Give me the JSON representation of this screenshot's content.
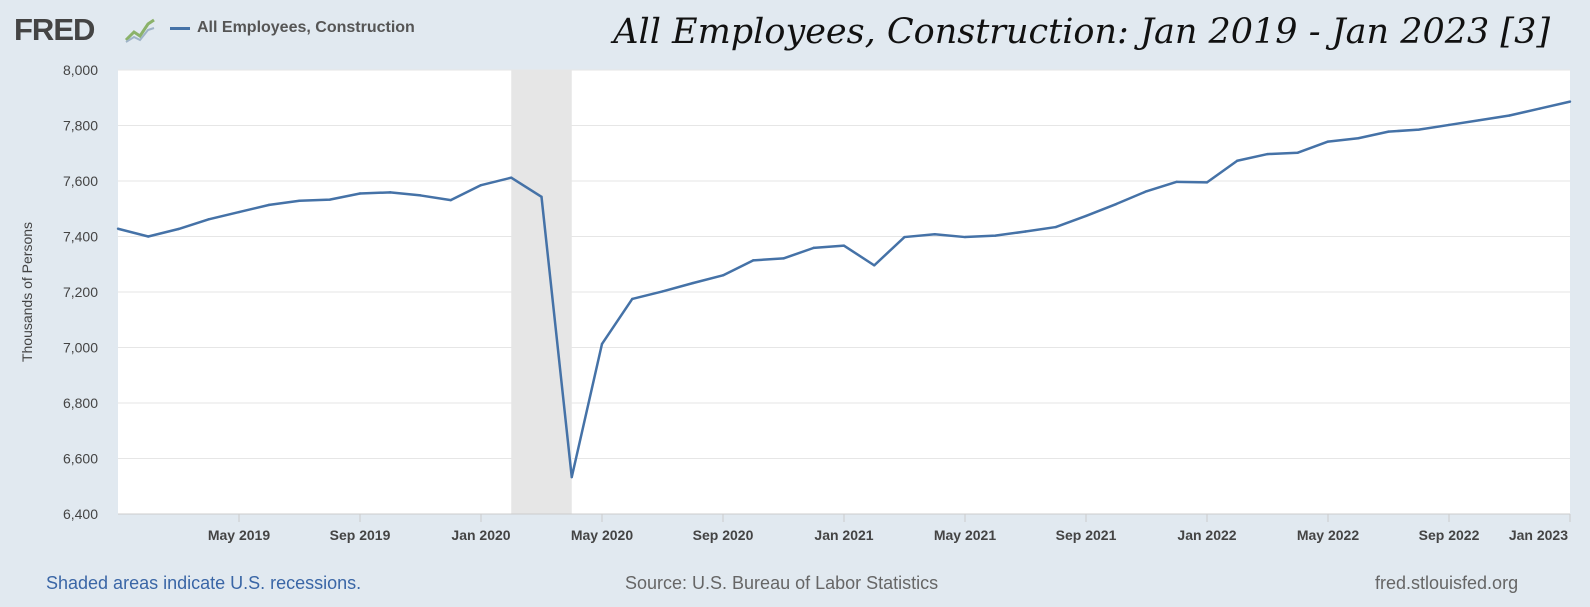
{
  "header": {
    "logo_text": "FRED",
    "legend_label": "All Employees, Construction",
    "title": "All Employees, Construction: Jan 2019 - Jan 2023 [3]"
  },
  "footer": {
    "recession_note": "Shaded areas indicate U.S. recessions.",
    "source": "Source: U.S. Bureau of Labor Statistics",
    "site": "fred.stlouisfed.org"
  },
  "colors": {
    "series": "#4572a7",
    "background": "#e1e9f0",
    "recession": "#e6e6e6"
  },
  "chart_data": {
    "type": "line",
    "title": "",
    "xlabel": "",
    "ylabel": "Thousands of Persons",
    "ylim": [
      6400,
      8000
    ],
    "yticks": [
      6400,
      6600,
      6800,
      7000,
      7200,
      7400,
      7600,
      7800,
      8000
    ],
    "ytick_labels": [
      "6,400",
      "6,600",
      "6,800",
      "7,000",
      "7,200",
      "7,400",
      "7,600",
      "7,800",
      "8,000"
    ],
    "xlim": [
      "2019-01",
      "2023-01"
    ],
    "xticks": [
      "2019-05",
      "2019-09",
      "2020-01",
      "2020-05",
      "2020-09",
      "2021-01",
      "2021-05",
      "2021-09",
      "2022-01",
      "2022-05",
      "2022-09",
      "2023-01"
    ],
    "xtick_labels": [
      "May 2019",
      "Sep 2019",
      "Jan 2020",
      "May 2020",
      "Sep 2020",
      "Jan 2021",
      "May 2021",
      "Sep 2021",
      "Jan 2022",
      "May 2022",
      "Sep 2022",
      "Jan 2023"
    ],
    "recessions": [
      {
        "start": "2020-02",
        "end": "2020-04"
      }
    ],
    "grid": true,
    "series": [
      {
        "name": "All Employees, Construction",
        "x": [
          "2019-01",
          "2019-02",
          "2019-03",
          "2019-04",
          "2019-05",
          "2019-06",
          "2019-07",
          "2019-08",
          "2019-09",
          "2019-10",
          "2019-11",
          "2019-12",
          "2020-01",
          "2020-02",
          "2020-03",
          "2020-04",
          "2020-05",
          "2020-06",
          "2020-07",
          "2020-08",
          "2020-09",
          "2020-10",
          "2020-11",
          "2020-12",
          "2021-01",
          "2021-02",
          "2021-03",
          "2021-04",
          "2021-05",
          "2021-06",
          "2021-07",
          "2021-08",
          "2021-09",
          "2021-10",
          "2021-11",
          "2021-12",
          "2022-01",
          "2022-02",
          "2022-03",
          "2022-04",
          "2022-05",
          "2022-06",
          "2022-07",
          "2022-08",
          "2022-09",
          "2022-10",
          "2022-11",
          "2022-12",
          "2023-01"
        ],
        "values": [
          7428,
          7400,
          7427,
          7462,
          7488,
          7514,
          7529,
          7533,
          7555,
          7559,
          7548,
          7531,
          7585,
          7612,
          7543,
          6533,
          7013,
          7175,
          7202,
          7232,
          7260,
          7314,
          7321,
          7359,
          7367,
          7296,
          7398,
          7408,
          7398,
          7403,
          7418,
          7434,
          7474,
          7517,
          7563,
          7597,
          7595,
          7673,
          7697,
          7702,
          7742,
          7754,
          7778,
          7785,
          7802,
          7819,
          7836,
          7861,
          7886
        ]
      }
    ]
  }
}
